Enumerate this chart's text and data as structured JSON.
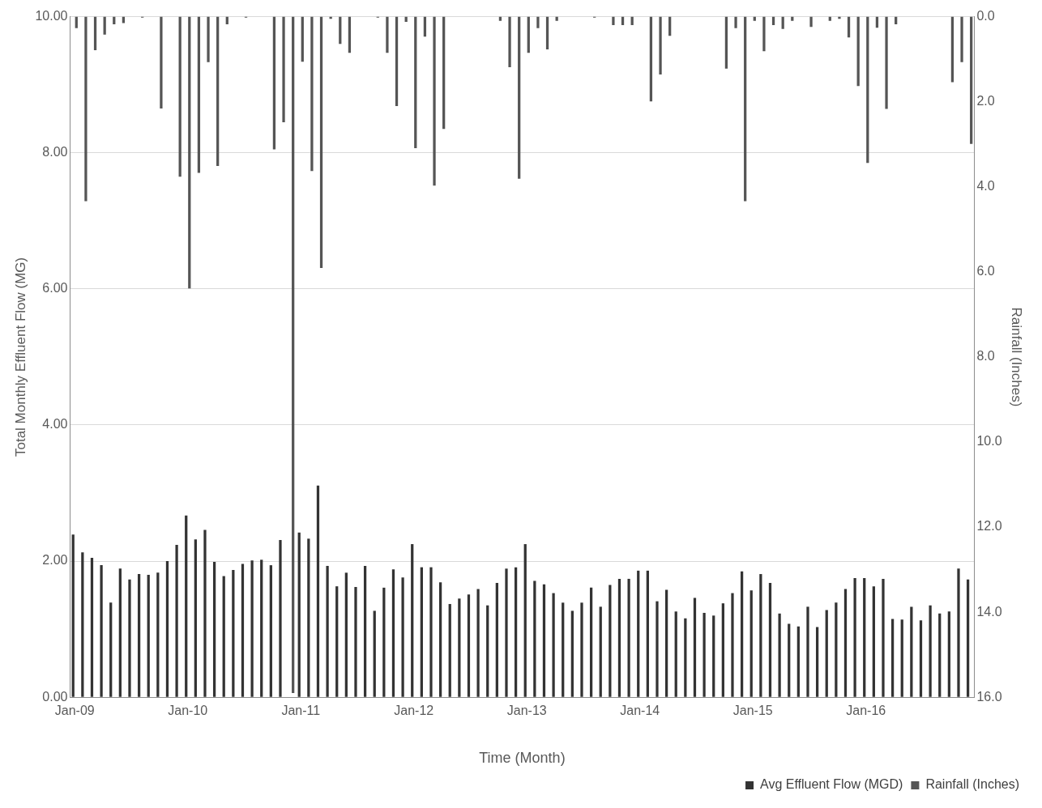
{
  "chart_data": {
    "type": "bar",
    "xlabel": "Time (Month)",
    "ylabel": "Total Monthly Effluent Flow (MG)",
    "y2label": "Rainfall (Inches)",
    "categories": [
      "Jan-09",
      null,
      null,
      null,
      null,
      null,
      null,
      null,
      null,
      null,
      null,
      null,
      "Jan-10",
      null,
      null,
      null,
      null,
      null,
      null,
      null,
      null,
      null,
      null,
      null,
      "Jan-11",
      null,
      null,
      null,
      null,
      null,
      null,
      null,
      null,
      null,
      null,
      null,
      "Jan-12",
      null,
      null,
      null,
      null,
      null,
      null,
      null,
      null,
      null,
      null,
      null,
      "Jan-13",
      null,
      null,
      null,
      null,
      null,
      null,
      null,
      null,
      null,
      null,
      null,
      "Jan-14",
      null,
      null,
      null,
      null,
      null,
      null,
      null,
      null,
      null,
      null,
      null,
      "Jan-15",
      null,
      null,
      null,
      null,
      null,
      null,
      null,
      null,
      null,
      null,
      null,
      "Jan-16",
      null,
      null,
      null,
      null,
      null,
      null,
      null,
      null,
      null,
      null,
      null
    ],
    "series": [
      {
        "name": "Avg Effluent Flow (MGD)",
        "color": "#333333",
        "values": [
          2.39,
          2.13,
          2.05,
          1.94,
          1.39,
          1.89,
          1.73,
          1.81,
          1.8,
          1.83,
          2.0,
          2.24,
          2.67,
          2.32,
          2.46,
          1.99,
          1.78,
          1.87,
          1.96,
          2.01,
          2.02,
          1.94,
          2.31,
          null,
          2.42,
          2.33,
          3.11,
          1.93,
          1.63,
          1.83,
          1.62,
          1.93,
          1.27,
          1.61,
          1.88,
          1.76,
          2.25,
          1.91,
          1.91,
          1.69,
          1.37,
          1.45,
          1.51,
          1.59,
          1.35,
          1.68,
          1.89,
          1.91,
          2.25,
          1.71,
          1.66,
          1.53,
          1.39,
          1.27,
          1.39,
          1.61,
          1.33,
          1.65,
          1.74,
          1.74,
          1.86,
          1.86,
          1.41,
          1.58,
          1.26,
          1.16,
          1.46,
          1.24,
          1.2,
          1.38,
          1.53,
          1.85,
          1.57,
          1.81,
          1.68,
          1.23,
          1.08,
          1.04,
          1.33,
          1.03,
          1.28,
          1.39,
          1.59,
          1.75,
          1.75,
          1.63,
          1.74,
          1.15,
          1.14,
          1.33,
          1.13,
          1.35,
          1.23,
          1.26,
          1.89,
          1.73
        ]
      },
      {
        "name": "Rainfall (Inches)",
        "color": "#555555",
        "axis": "y2",
        "values": [
          0.27,
          4.34,
          0.79,
          0.42,
          0.18,
          0.15,
          0,
          0.02,
          0,
          2.16,
          0,
          3.76,
          6.39,
          3.67,
          1.07,
          3.51,
          0.18,
          0,
          0.02,
          0,
          0,
          3.12,
          2.48,
          15.9,
          1.06,
          3.63,
          5.91,
          0.05,
          0.64,
          0.85,
          0,
          0,
          0.02,
          0.85,
          2.1,
          0.12,
          3.09,
          0.47,
          3.97,
          2.64,
          0,
          0,
          0,
          0,
          0,
          0.1,
          1.19,
          3.81,
          0.85,
          0.27,
          0.77,
          0.1,
          0,
          0,
          0,
          0.02,
          0,
          0.2,
          0.2,
          0.2,
          0,
          1.99,
          1.36,
          0.45,
          0,
          0,
          0,
          0,
          0,
          1.22,
          0.27,
          4.34,
          0.1,
          0.81,
          0.2,
          0.29,
          0.1,
          0,
          0.24,
          0,
          0.1,
          0.05,
          0.49,
          1.63,
          3.44,
          0.26,
          2.17,
          0.18,
          0,
          0,
          0,
          0,
          0,
          1.54,
          1.07,
          2.99
        ]
      }
    ],
    "ylim": [
      0,
      10
    ],
    "yticks": [
      {
        "value": 0,
        "label": "0.00"
      },
      {
        "value": 2,
        "label": "2.00"
      },
      {
        "value": 4,
        "label": "4.00"
      },
      {
        "value": 6,
        "label": "6.00"
      },
      {
        "value": 8,
        "label": "8.00"
      },
      {
        "value": 10,
        "label": "10.00"
      }
    ],
    "y2lim": [
      16,
      0
    ],
    "y2ticks": [
      {
        "value": 0,
        "label": "0.0"
      },
      {
        "value": 2,
        "label": "2.0"
      },
      {
        "value": 4,
        "label": "4.0"
      },
      {
        "value": 6,
        "label": "6.0"
      },
      {
        "value": 8,
        "label": "8.0"
      },
      {
        "value": 10,
        "label": "10.0"
      },
      {
        "value": 12,
        "label": "12.0"
      },
      {
        "value": 14,
        "label": "14.0"
      },
      {
        "value": 16,
        "label": "16.0"
      }
    ],
    "grid": "y",
    "legend": "bottom right"
  }
}
